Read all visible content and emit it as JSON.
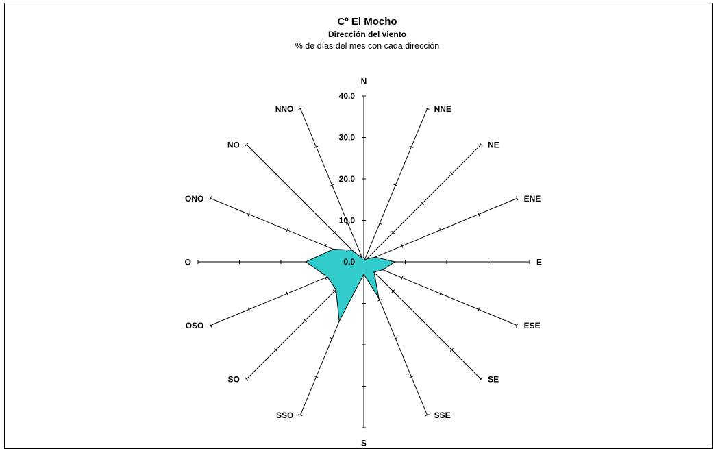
{
  "chart_data": {
    "type": "radar",
    "title": "Cº El Mocho",
    "subtitle": "Dirección del viento",
    "caption": "% de días del mes con cada dirección",
    "directions": [
      "N",
      "NNE",
      "NE",
      "ENE",
      "E",
      "ESE",
      "SE",
      "SSE",
      "S",
      "SSO",
      "SO",
      "OSO",
      "O",
      "ONO",
      "NO",
      "NNO"
    ],
    "values": [
      1,
      0.5,
      1,
      3,
      7.5,
      5,
      3.5,
      9.5,
      3,
      15.5,
      9.5,
      9.5,
      14,
      8,
      4,
      1
    ],
    "rlim": [
      0,
      40
    ],
    "r_ticks": [
      "0.0",
      "10.0",
      "20.0",
      "30.0",
      "40.0"
    ],
    "fill_color": "#33CCCC",
    "outline_color": "#000000"
  }
}
